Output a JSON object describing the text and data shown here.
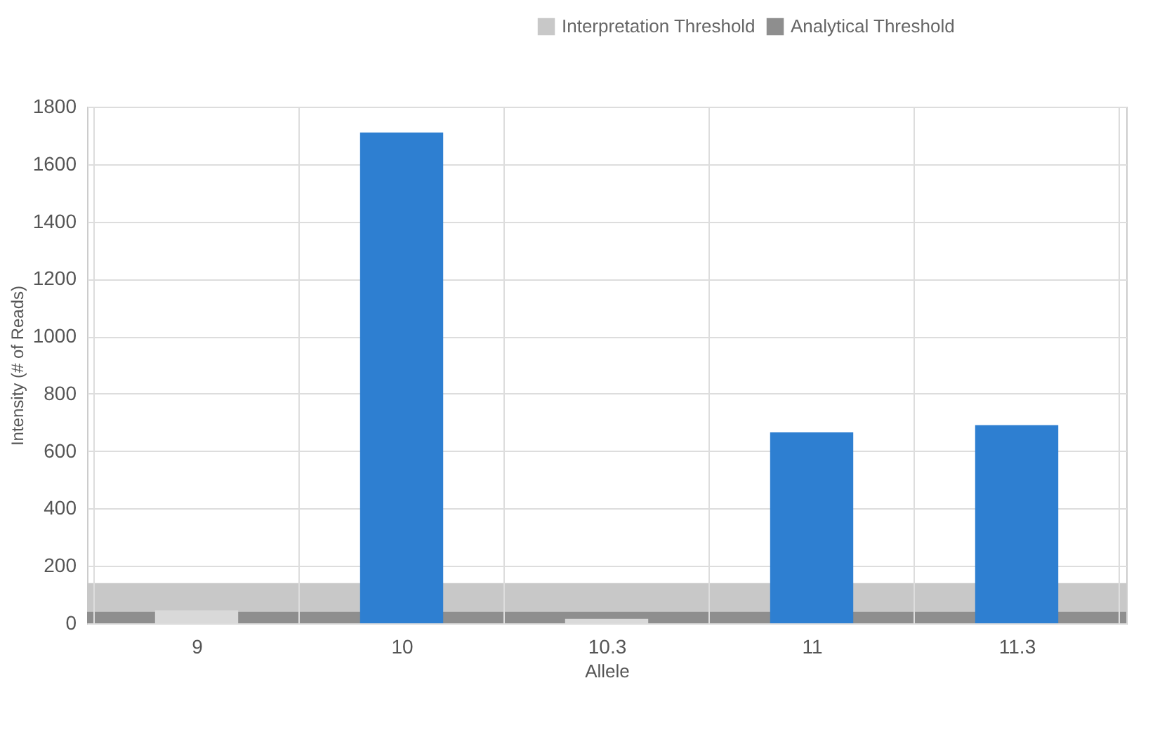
{
  "chart_data": {
    "type": "bar",
    "xlabel": "Allele",
    "ylabel": "Intensity (# of Reads)",
    "categories": [
      "9",
      "10",
      "10.3",
      "11",
      "11.3"
    ],
    "values": [
      45,
      1710,
      15,
      665,
      690
    ],
    "colors": [
      "#d9d9d9",
      "#2e7fd1",
      "#d9d9d9",
      "#2e7fd1",
      "#2e7fd1"
    ],
    "ylim": [
      0,
      1800
    ],
    "yticks": [
      0,
      200,
      400,
      600,
      800,
      1000,
      1200,
      1400,
      1600,
      1800
    ],
    "grid": true,
    "legend": "top right",
    "bands": [
      {
        "axis": "y",
        "from": 0,
        "to": 140,
        "label": "Interpretation Threshold",
        "color": "#c8c8c8"
      },
      {
        "axis": "y",
        "from": 0,
        "to": 40,
        "label": "Analytical Threshold",
        "color": "#8e8e8e"
      }
    ]
  }
}
